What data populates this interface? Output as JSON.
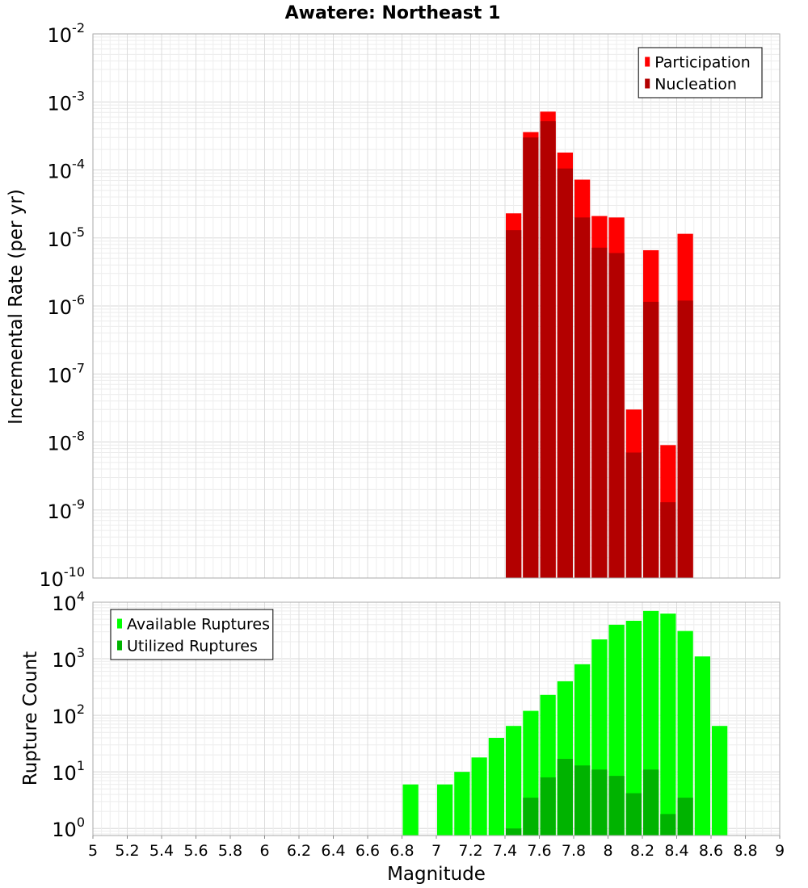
{
  "chart_data": [
    {
      "type": "bar",
      "title": "Awatere: Northeast 1",
      "ylabel": "Incremental Rate (per yr)",
      "xlabel": "",
      "yscale": "log",
      "ylim": [
        1e-10,
        0.01
      ],
      "xlim": [
        5,
        9
      ],
      "grid": true,
      "legend_position": "top-right",
      "y_tick_labels": [
        {
          "base": "10",
          "exp": "-10"
        },
        {
          "base": "10",
          "exp": "-9"
        },
        {
          "base": "10",
          "exp": "-8"
        },
        {
          "base": "10",
          "exp": "-7"
        },
        {
          "base": "10",
          "exp": "-6"
        },
        {
          "base": "10",
          "exp": "-5"
        },
        {
          "base": "10",
          "exp": "-4"
        },
        {
          "base": "10",
          "exp": "-3"
        },
        {
          "base": "10",
          "exp": "-2"
        }
      ],
      "x": [
        7.45,
        7.55,
        7.65,
        7.75,
        7.85,
        7.95,
        8.05,
        8.15,
        8.25,
        8.35,
        8.45
      ],
      "series": [
        {
          "name": "Participation",
          "color": "#ff0000",
          "values": [
            2.3e-05,
            0.00036,
            0.00072,
            0.00018,
            7.2e-05,
            2.1e-05,
            2e-05,
            3e-08,
            6.6e-06,
            9e-09,
            1.15e-05
          ]
        },
        {
          "name": "Nucleation",
          "color": "#b30000",
          "values": [
            1.3e-05,
            0.0003,
            0.00052,
            0.000105,
            2e-05,
            7.2e-06,
            6e-06,
            7e-09,
            1.15e-06,
            1.3e-09,
            1.2e-06
          ]
        }
      ]
    },
    {
      "type": "bar",
      "title": "",
      "ylabel": "Rupture Count",
      "xlabel": "Magnitude",
      "yscale": "log",
      "ylim": [
        0.75,
        10000
      ],
      "xlim": [
        5,
        9
      ],
      "grid": true,
      "legend_position": "top-left",
      "y_tick_labels": [
        {
          "base": "10",
          "exp": "0"
        },
        {
          "base": "10",
          "exp": "1"
        },
        {
          "base": "10",
          "exp": "2"
        },
        {
          "base": "10",
          "exp": "3"
        },
        {
          "base": "10",
          "exp": "4"
        }
      ],
      "x_ticks": [
        5,
        5.2,
        5.4,
        5.6,
        5.8,
        6,
        6.2,
        6.4,
        6.6,
        6.8,
        7,
        7.2,
        7.4,
        7.6,
        7.8,
        8,
        8.2,
        8.4,
        8.6,
        8.8,
        9
      ],
      "x_tick_labels": [
        "5",
        "5.2",
        "5.4",
        "5.6",
        "5.8",
        "6",
        "6.2",
        "6.4",
        "6.6",
        "6.8",
        "7",
        "7.2",
        "7.4",
        "7.6",
        "7.8",
        "8",
        "8.2",
        "8.4",
        "8.6",
        "8.8",
        "9"
      ],
      "series": [
        {
          "name": "Available Ruptures",
          "color": "#00ff00",
          "x": [
            6.85,
            7.05,
            7.15,
            7.25,
            7.35,
            7.45,
            7.55,
            7.65,
            7.75,
            7.85,
            7.95,
            8.05,
            8.15,
            8.25,
            8.35,
            8.45,
            8.55,
            8.65
          ],
          "values": [
            6,
            6,
            10,
            18,
            40,
            65,
            120,
            230,
            400,
            800,
            2200,
            4000,
            4700,
            7000,
            6300,
            3100,
            1100,
            65
          ]
        },
        {
          "name": "Utilized Ruptures",
          "color": "#00b300",
          "x": [
            7.45,
            7.55,
            7.65,
            7.75,
            7.85,
            7.95,
            8.05,
            8.15,
            8.25,
            8.35,
            8.45
          ],
          "values": [
            1,
            3.5,
            8,
            17,
            13,
            11,
            8.5,
            4.2,
            11,
            1.8,
            3.5
          ]
        }
      ]
    }
  ]
}
